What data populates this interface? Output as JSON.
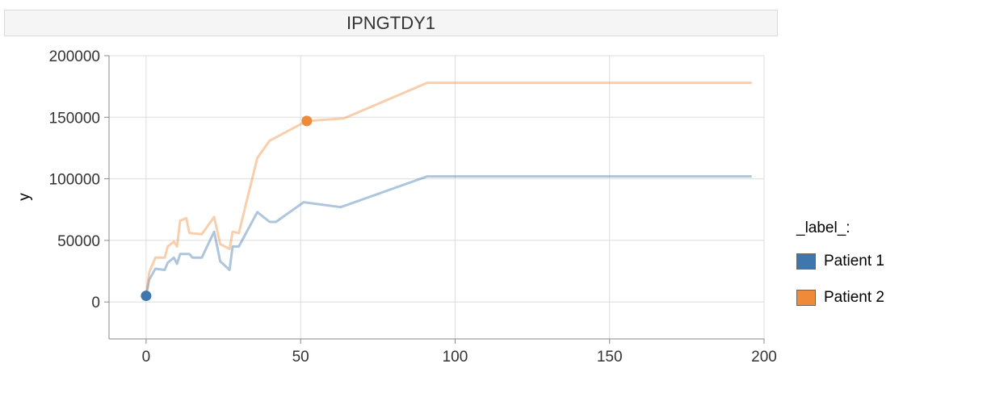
{
  "colors": {
    "series1": "#3e77ae",
    "series2": "#ef8a3a",
    "grid": "#dddddd",
    "axis": "#888888"
  },
  "chart_data": {
    "type": "line",
    "title": "IPNGTDY1",
    "xlabel": "",
    "ylabel": "y",
    "xlim": [
      -12,
      200
    ],
    "ylim": [
      -30000,
      200000
    ],
    "xticks": [
      "0",
      "50",
      "100",
      "150",
      "200"
    ],
    "xtick_values": [
      0,
      50,
      100,
      150,
      200
    ],
    "yticks": [
      "200000",
      "150000",
      "100000",
      "50000",
      "0"
    ],
    "ytick_values": [
      200000,
      150000,
      100000,
      50000,
      0
    ],
    "grid": true,
    "legend": {
      "title": "_label_:",
      "placement": "right"
    },
    "series": [
      {
        "name": "Patient 1",
        "color": "#3e77ae",
        "marker": {
          "x": 0,
          "y": 5000
        },
        "x": [
          0,
          1,
          3,
          6,
          7,
          9,
          10,
          11,
          14,
          15,
          18,
          22,
          24,
          27,
          28,
          30,
          36,
          40,
          42,
          51,
          63,
          91,
          196
        ],
        "y": [
          5000,
          18000,
          27000,
          26000,
          32000,
          36000,
          31000,
          39000,
          39000,
          36000,
          36000,
          57000,
          33000,
          26000,
          45000,
          45000,
          73000,
          65000,
          65000,
          81000,
          77000,
          102000,
          102000
        ]
      },
      {
        "name": "Patient 2",
        "color": "#ef8a3a",
        "marker": {
          "x": 52,
          "y": 147000
        },
        "x": [
          0,
          1,
          3,
          6,
          7,
          9,
          10,
          11,
          13,
          14,
          18,
          22,
          24,
          27,
          28,
          30,
          36,
          40,
          52,
          64,
          91,
          196
        ],
        "y": [
          5000,
          24000,
          36000,
          36000,
          45000,
          49000,
          45000,
          66000,
          68000,
          56000,
          55000,
          69000,
          47000,
          43000,
          57000,
          56000,
          117000,
          131000,
          147000,
          149000,
          178000,
          178000
        ]
      }
    ]
  }
}
